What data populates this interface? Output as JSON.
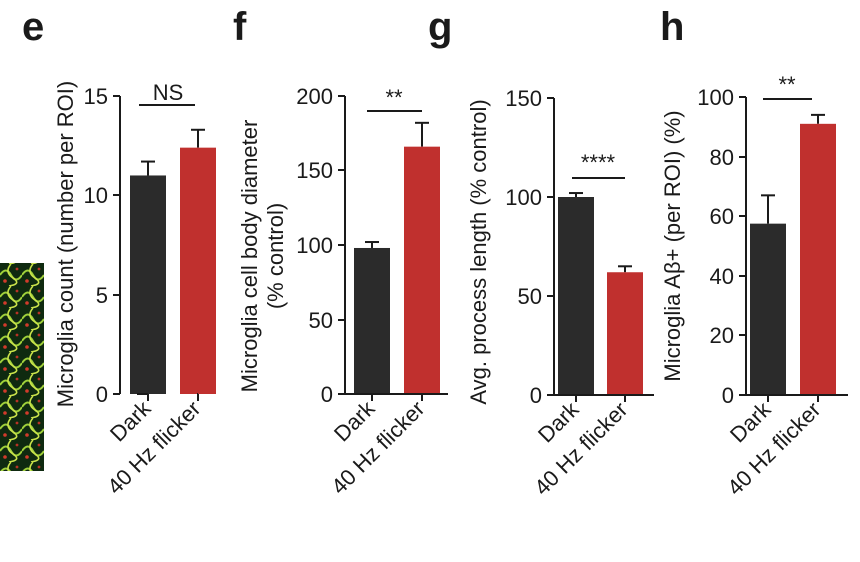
{
  "panels": [
    "e",
    "f",
    "g",
    "h"
  ],
  "chart_data": [
    {
      "panel": "e",
      "type": "bar",
      "categories": [
        "Dark",
        "40 Hz flicker"
      ],
      "values": [
        11.0,
        12.4
      ],
      "errors": [
        0.7,
        0.9
      ],
      "colors": [
        "#2b2b2b",
        "#c0302e"
      ],
      "ylabel": "Microglia count (number per ROI)",
      "ylim": [
        0,
        15
      ],
      "yticks": [
        "0",
        "5",
        "10",
        "15"
      ],
      "significance": "NS"
    },
    {
      "panel": "f",
      "type": "bar",
      "categories": [
        "Dark",
        "40 Hz flicker"
      ],
      "values": [
        98,
        166
      ],
      "errors": [
        4,
        16
      ],
      "colors": [
        "#2b2b2b",
        "#c0302e"
      ],
      "ylabel": "Microglia cell body diameter",
      "ylabel2": "(% control)",
      "ylim": [
        0,
        200
      ],
      "yticks": [
        "0",
        "50",
        "100",
        "150",
        "200"
      ],
      "significance": "**"
    },
    {
      "panel": "g",
      "type": "bar",
      "categories": [
        "Dark",
        "40 Hz flicker"
      ],
      "values": [
        100,
        62
      ],
      "errors": [
        2,
        3
      ],
      "colors": [
        "#2b2b2b",
        "#c0302e"
      ],
      "ylabel": "Avg. process length (% control)",
      "ylim": [
        0,
        150
      ],
      "yticks": [
        "0",
        "50",
        "100",
        "150"
      ],
      "significance": "****"
    },
    {
      "panel": "h",
      "type": "bar",
      "categories": [
        "Dark",
        "40 Hz flicker"
      ],
      "values": [
        57.5,
        91
      ],
      "errors": [
        9.5,
        3
      ],
      "colors": [
        "#2b2b2b",
        "#c0302e"
      ],
      "ylabel": "Microglia Aβ+ (per ROI) (%)",
      "ylim": [
        0,
        100
      ],
      "yticks": [
        "0",
        "20",
        "40",
        "60",
        "80",
        "100"
      ],
      "significance": "**"
    }
  ]
}
